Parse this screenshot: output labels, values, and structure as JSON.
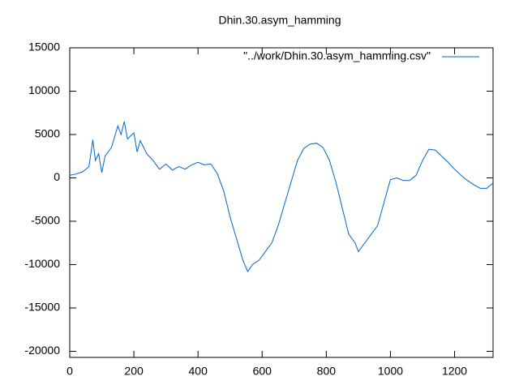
{
  "chart_data": {
    "type": "line",
    "title": "Dhin.30.asym_hamming",
    "x": [
      0,
      20,
      40,
      60,
      72,
      80,
      90,
      100,
      110,
      130,
      150,
      160,
      170,
      180,
      200,
      210,
      220,
      240,
      260,
      280,
      300,
      320,
      340,
      360,
      380,
      400,
      420,
      440,
      460,
      480,
      500,
      520,
      540,
      555,
      570,
      590,
      610,
      630,
      650,
      670,
      690,
      710,
      730,
      750,
      770,
      790,
      810,
      830,
      850,
      870,
      890,
      900,
      920,
      940,
      960,
      975,
      990,
      1000,
      1020,
      1040,
      1060,
      1080,
      1100,
      1120,
      1140,
      1160,
      1180,
      1200,
      1220,
      1240,
      1260,
      1280,
      1300,
      1320
    ],
    "series": [
      {
        "name": "\"../work/Dhin.30.asym_hamming.csv\"",
        "color": "#0066cc",
        "values": [
          300,
          450,
          700,
          1300,
          4400,
          2000,
          2800,
          600,
          2500,
          3500,
          6000,
          5000,
          6500,
          4500,
          5200,
          3000,
          4300,
          2800,
          2000,
          1000,
          1600,
          900,
          1300,
          1000,
          1500,
          1800,
          1500,
          1600,
          500,
          -1500,
          -4500,
          -7000,
          -9500,
          -10800,
          -10000,
          -9500,
          -8500,
          -7500,
          -5500,
          -3000,
          -500,
          2000,
          3400,
          3900,
          4000,
          3500,
          2000,
          -500,
          -3500,
          -6500,
          -7500,
          -8500,
          -7500,
          -6500,
          -5500,
          -3500,
          -1500,
          -200,
          0,
          -300,
          -300,
          300,
          2000,
          3300,
          3200,
          2500,
          1800,
          1000,
          300,
          -300,
          -800,
          -1200,
          -1200,
          -600
        ]
      }
    ],
    "xlim": [
      0,
      1320
    ],
    "xticks": [
      0,
      200,
      400,
      600,
      800,
      1000,
      1200
    ],
    "ylim": [
      -20700,
      15000
    ],
    "yticks": [
      -20000,
      -15000,
      -10000,
      -5000,
      0,
      5000,
      10000,
      15000
    ],
    "grid": false,
    "legend": "top-right"
  }
}
